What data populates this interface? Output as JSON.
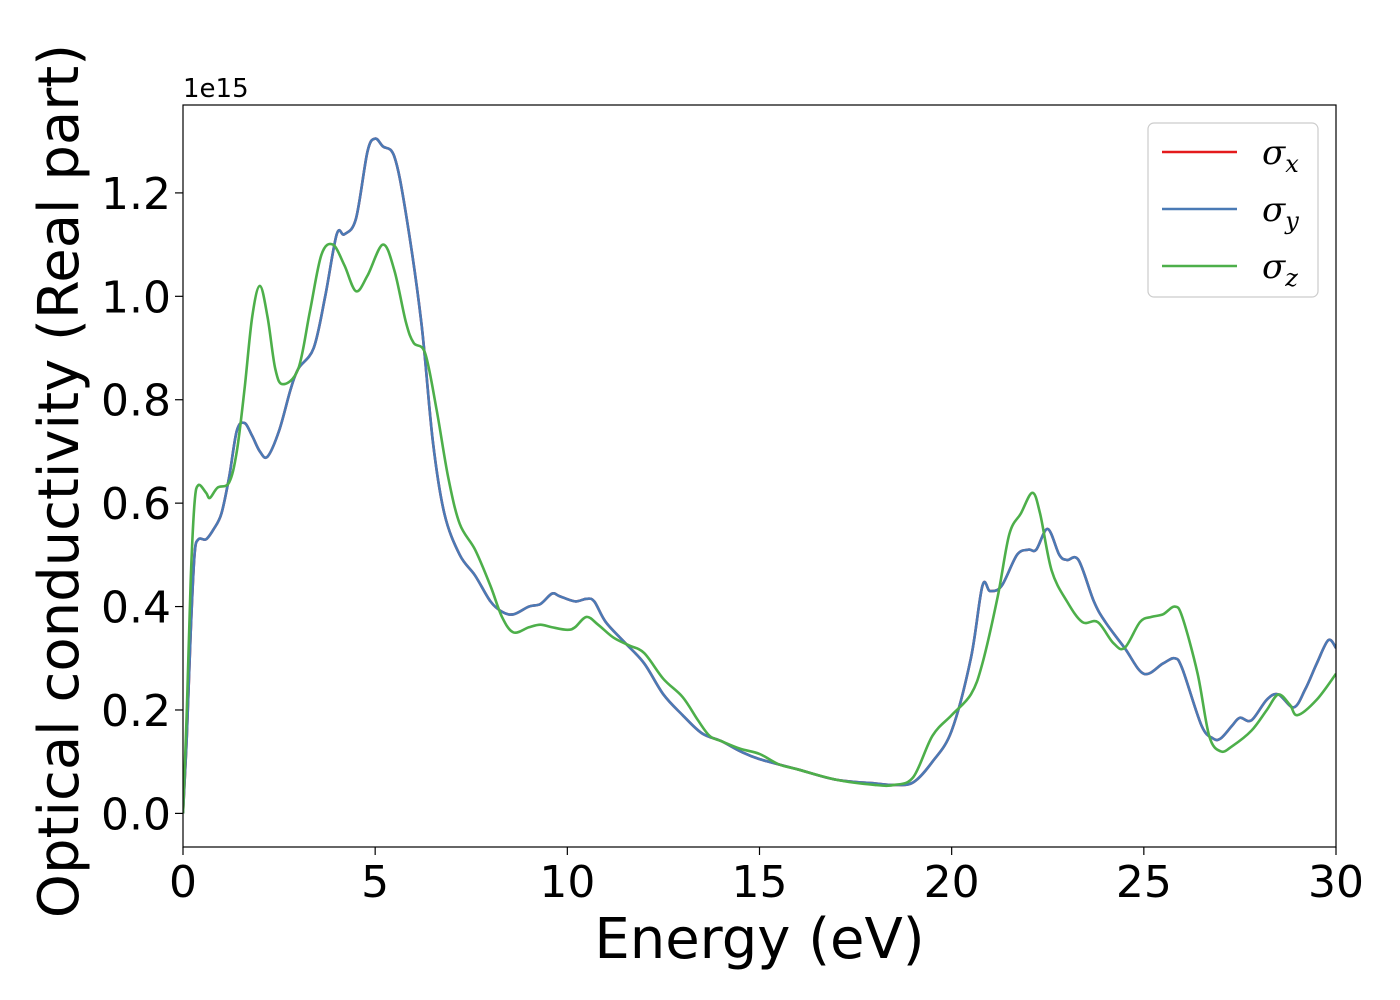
{
  "chart_data": {
    "type": "line",
    "xlabel": "Energy (eV)",
    "ylabel": "Optical conductivity (Real part)",
    "y_offset_text": "1e15",
    "xlim": [
      0,
      30
    ],
    "ylim": [
      -0.065,
      1.37
    ],
    "x_ticks": [
      0,
      5,
      10,
      15,
      20,
      25,
      30
    ],
    "x_tick_labels": [
      "0",
      "5",
      "10",
      "15",
      "20",
      "25",
      "30"
    ],
    "y_ticks": [
      0.0,
      0.2,
      0.4,
      0.6,
      0.8,
      1.0,
      1.2
    ],
    "y_tick_labels": [
      "0.0",
      "0.2",
      "0.4",
      "0.6",
      "0.8",
      "1.0",
      "1.2"
    ],
    "grid": false,
    "legend_position": "top-right",
    "series": [
      {
        "name": "σx",
        "legend_symbol": "σ",
        "legend_sub": "x",
        "color": "#e41a1c",
        "points": [
          [
            0,
            0.0
          ],
          [
            0.1,
            0.15
          ],
          [
            0.2,
            0.35
          ],
          [
            0.3,
            0.5
          ],
          [
            0.4,
            0.53
          ],
          [
            0.6,
            0.53
          ],
          [
            0.8,
            0.55
          ],
          [
            1.0,
            0.58
          ],
          [
            1.2,
            0.65
          ],
          [
            1.4,
            0.74
          ],
          [
            1.6,
            0.755
          ],
          [
            1.8,
            0.73
          ],
          [
            2.0,
            0.7
          ],
          [
            2.2,
            0.69
          ],
          [
            2.5,
            0.74
          ],
          [
            2.8,
            0.82
          ],
          [
            3.0,
            0.86
          ],
          [
            3.4,
            0.9
          ],
          [
            3.7,
            1.0
          ],
          [
            4.0,
            1.12
          ],
          [
            4.2,
            1.12
          ],
          [
            4.5,
            1.15
          ],
          [
            4.8,
            1.28
          ],
          [
            5.0,
            1.305
          ],
          [
            5.2,
            1.29
          ],
          [
            5.5,
            1.27
          ],
          [
            5.8,
            1.16
          ],
          [
            6.2,
            0.95
          ],
          [
            6.5,
            0.72
          ],
          [
            6.8,
            0.58
          ],
          [
            7.2,
            0.5
          ],
          [
            7.6,
            0.46
          ],
          [
            8.0,
            0.41
          ],
          [
            8.3,
            0.39
          ],
          [
            8.6,
            0.385
          ],
          [
            9.0,
            0.4
          ],
          [
            9.3,
            0.405
          ],
          [
            9.6,
            0.425
          ],
          [
            9.8,
            0.42
          ],
          [
            10.2,
            0.41
          ],
          [
            10.5,
            0.415
          ],
          [
            10.7,
            0.41
          ],
          [
            11.0,
            0.37
          ],
          [
            11.5,
            0.33
          ],
          [
            12.0,
            0.29
          ],
          [
            12.5,
            0.23
          ],
          [
            13.0,
            0.19
          ],
          [
            13.5,
            0.155
          ],
          [
            14.0,
            0.14
          ],
          [
            14.5,
            0.12
          ],
          [
            15.0,
            0.105
          ],
          [
            16.0,
            0.085
          ],
          [
            17.0,
            0.065
          ],
          [
            18.0,
            0.058
          ],
          [
            18.5,
            0.055
          ],
          [
            19.0,
            0.06
          ],
          [
            19.5,
            0.1
          ],
          [
            20.0,
            0.16
          ],
          [
            20.5,
            0.3
          ],
          [
            20.8,
            0.44
          ],
          [
            21.0,
            0.43
          ],
          [
            21.3,
            0.44
          ],
          [
            21.7,
            0.5
          ],
          [
            22.0,
            0.51
          ],
          [
            22.2,
            0.51
          ],
          [
            22.5,
            0.55
          ],
          [
            22.8,
            0.5
          ],
          [
            23.0,
            0.49
          ],
          [
            23.3,
            0.49
          ],
          [
            23.7,
            0.41
          ],
          [
            24.0,
            0.37
          ],
          [
            24.5,
            0.32
          ],
          [
            25.0,
            0.27
          ],
          [
            25.5,
            0.29
          ],
          [
            25.8,
            0.3
          ],
          [
            26.0,
            0.28
          ],
          [
            26.5,
            0.17
          ],
          [
            26.8,
            0.145
          ],
          [
            27.0,
            0.145
          ],
          [
            27.3,
            0.17
          ],
          [
            27.5,
            0.185
          ],
          [
            27.8,
            0.18
          ],
          [
            28.2,
            0.22
          ],
          [
            28.5,
            0.23
          ],
          [
            28.9,
            0.205
          ],
          [
            29.2,
            0.24
          ],
          [
            29.5,
            0.29
          ],
          [
            29.8,
            0.335
          ],
          [
            30.0,
            0.32
          ]
        ]
      },
      {
        "name": "σy",
        "legend_symbol": "σ",
        "legend_sub": "y",
        "color": "#4a7ab5",
        "points": [
          [
            0,
            0.0
          ],
          [
            0.1,
            0.15
          ],
          [
            0.2,
            0.35
          ],
          [
            0.3,
            0.5
          ],
          [
            0.4,
            0.53
          ],
          [
            0.6,
            0.53
          ],
          [
            0.8,
            0.55
          ],
          [
            1.0,
            0.58
          ],
          [
            1.2,
            0.65
          ],
          [
            1.4,
            0.74
          ],
          [
            1.6,
            0.755
          ],
          [
            1.8,
            0.73
          ],
          [
            2.0,
            0.7
          ],
          [
            2.2,
            0.69
          ],
          [
            2.5,
            0.74
          ],
          [
            2.8,
            0.82
          ],
          [
            3.0,
            0.86
          ],
          [
            3.4,
            0.9
          ],
          [
            3.7,
            1.0
          ],
          [
            4.0,
            1.12
          ],
          [
            4.2,
            1.12
          ],
          [
            4.5,
            1.15
          ],
          [
            4.8,
            1.28
          ],
          [
            5.0,
            1.305
          ],
          [
            5.2,
            1.29
          ],
          [
            5.5,
            1.27
          ],
          [
            5.8,
            1.16
          ],
          [
            6.2,
            0.95
          ],
          [
            6.5,
            0.72
          ],
          [
            6.8,
            0.58
          ],
          [
            7.2,
            0.5
          ],
          [
            7.6,
            0.46
          ],
          [
            8.0,
            0.41
          ],
          [
            8.3,
            0.39
          ],
          [
            8.6,
            0.385
          ],
          [
            9.0,
            0.4
          ],
          [
            9.3,
            0.405
          ],
          [
            9.6,
            0.425
          ],
          [
            9.8,
            0.42
          ],
          [
            10.2,
            0.41
          ],
          [
            10.5,
            0.415
          ],
          [
            10.7,
            0.41
          ],
          [
            11.0,
            0.37
          ],
          [
            11.5,
            0.33
          ],
          [
            12.0,
            0.29
          ],
          [
            12.5,
            0.23
          ],
          [
            13.0,
            0.19
          ],
          [
            13.5,
            0.155
          ],
          [
            14.0,
            0.14
          ],
          [
            14.5,
            0.12
          ],
          [
            15.0,
            0.105
          ],
          [
            16.0,
            0.085
          ],
          [
            17.0,
            0.065
          ],
          [
            18.0,
            0.058
          ],
          [
            18.5,
            0.055
          ],
          [
            19.0,
            0.06
          ],
          [
            19.5,
            0.1
          ],
          [
            20.0,
            0.16
          ],
          [
            20.5,
            0.3
          ],
          [
            20.8,
            0.44
          ],
          [
            21.0,
            0.43
          ],
          [
            21.3,
            0.44
          ],
          [
            21.7,
            0.5
          ],
          [
            22.0,
            0.51
          ],
          [
            22.2,
            0.51
          ],
          [
            22.5,
            0.55
          ],
          [
            22.8,
            0.5
          ],
          [
            23.0,
            0.49
          ],
          [
            23.3,
            0.49
          ],
          [
            23.7,
            0.41
          ],
          [
            24.0,
            0.37
          ],
          [
            24.5,
            0.32
          ],
          [
            25.0,
            0.27
          ],
          [
            25.5,
            0.29
          ],
          [
            25.8,
            0.3
          ],
          [
            26.0,
            0.28
          ],
          [
            26.5,
            0.17
          ],
          [
            26.8,
            0.145
          ],
          [
            27.0,
            0.145
          ],
          [
            27.3,
            0.17
          ],
          [
            27.5,
            0.185
          ],
          [
            27.8,
            0.18
          ],
          [
            28.2,
            0.22
          ],
          [
            28.5,
            0.23
          ],
          [
            28.9,
            0.205
          ],
          [
            29.2,
            0.24
          ],
          [
            29.5,
            0.29
          ],
          [
            29.8,
            0.335
          ],
          [
            30.0,
            0.32
          ]
        ]
      },
      {
        "name": "σz",
        "legend_symbol": "σ",
        "legend_sub": "z",
        "color": "#4daf4a",
        "points": [
          [
            0,
            0.0
          ],
          [
            0.1,
            0.2
          ],
          [
            0.2,
            0.45
          ],
          [
            0.3,
            0.6
          ],
          [
            0.4,
            0.635
          ],
          [
            0.6,
            0.62
          ],
          [
            0.7,
            0.61
          ],
          [
            0.9,
            0.63
          ],
          [
            1.2,
            0.64
          ],
          [
            1.4,
            0.7
          ],
          [
            1.6,
            0.82
          ],
          [
            1.8,
            0.96
          ],
          [
            2.0,
            1.02
          ],
          [
            2.2,
            0.96
          ],
          [
            2.4,
            0.86
          ],
          [
            2.6,
            0.83
          ],
          [
            3.0,
            0.86
          ],
          [
            3.3,
            0.97
          ],
          [
            3.6,
            1.08
          ],
          [
            3.9,
            1.1
          ],
          [
            4.2,
            1.06
          ],
          [
            4.5,
            1.01
          ],
          [
            4.8,
            1.04
          ],
          [
            5.2,
            1.1
          ],
          [
            5.5,
            1.05
          ],
          [
            5.8,
            0.95
          ],
          [
            6.0,
            0.91
          ],
          [
            6.3,
            0.89
          ],
          [
            6.6,
            0.78
          ],
          [
            6.9,
            0.65
          ],
          [
            7.2,
            0.56
          ],
          [
            7.6,
            0.51
          ],
          [
            8.0,
            0.44
          ],
          [
            8.3,
            0.38
          ],
          [
            8.6,
            0.35
          ],
          [
            9.0,
            0.36
          ],
          [
            9.3,
            0.365
          ],
          [
            9.6,
            0.36
          ],
          [
            10.0,
            0.355
          ],
          [
            10.2,
            0.36
          ],
          [
            10.5,
            0.38
          ],
          [
            10.8,
            0.365
          ],
          [
            11.2,
            0.34
          ],
          [
            11.6,
            0.325
          ],
          [
            12.0,
            0.31
          ],
          [
            12.5,
            0.26
          ],
          [
            13.0,
            0.225
          ],
          [
            13.4,
            0.18
          ],
          [
            13.7,
            0.15
          ],
          [
            14.0,
            0.14
          ],
          [
            14.5,
            0.125
          ],
          [
            15.0,
            0.115
          ],
          [
            15.5,
            0.095
          ],
          [
            16.0,
            0.085
          ],
          [
            17.0,
            0.065
          ],
          [
            18.0,
            0.055
          ],
          [
            18.5,
            0.055
          ],
          [
            19.0,
            0.07
          ],
          [
            19.5,
            0.15
          ],
          [
            20.0,
            0.19
          ],
          [
            20.5,
            0.23
          ],
          [
            20.8,
            0.29
          ],
          [
            21.2,
            0.42
          ],
          [
            21.5,
            0.54
          ],
          [
            21.8,
            0.58
          ],
          [
            22.1,
            0.62
          ],
          [
            22.3,
            0.58
          ],
          [
            22.6,
            0.47
          ],
          [
            23.0,
            0.41
          ],
          [
            23.4,
            0.37
          ],
          [
            23.8,
            0.37
          ],
          [
            24.2,
            0.33
          ],
          [
            24.5,
            0.32
          ],
          [
            24.9,
            0.37
          ],
          [
            25.2,
            0.38
          ],
          [
            25.5,
            0.385
          ],
          [
            25.8,
            0.4
          ],
          [
            26.0,
            0.38
          ],
          [
            26.4,
            0.27
          ],
          [
            26.7,
            0.15
          ],
          [
            27.0,
            0.12
          ],
          [
            27.3,
            0.13
          ],
          [
            27.8,
            0.16
          ],
          [
            28.2,
            0.2
          ],
          [
            28.5,
            0.23
          ],
          [
            28.8,
            0.21
          ],
          [
            29.0,
            0.19
          ],
          [
            29.5,
            0.22
          ],
          [
            30.0,
            0.27
          ]
        ]
      }
    ]
  }
}
